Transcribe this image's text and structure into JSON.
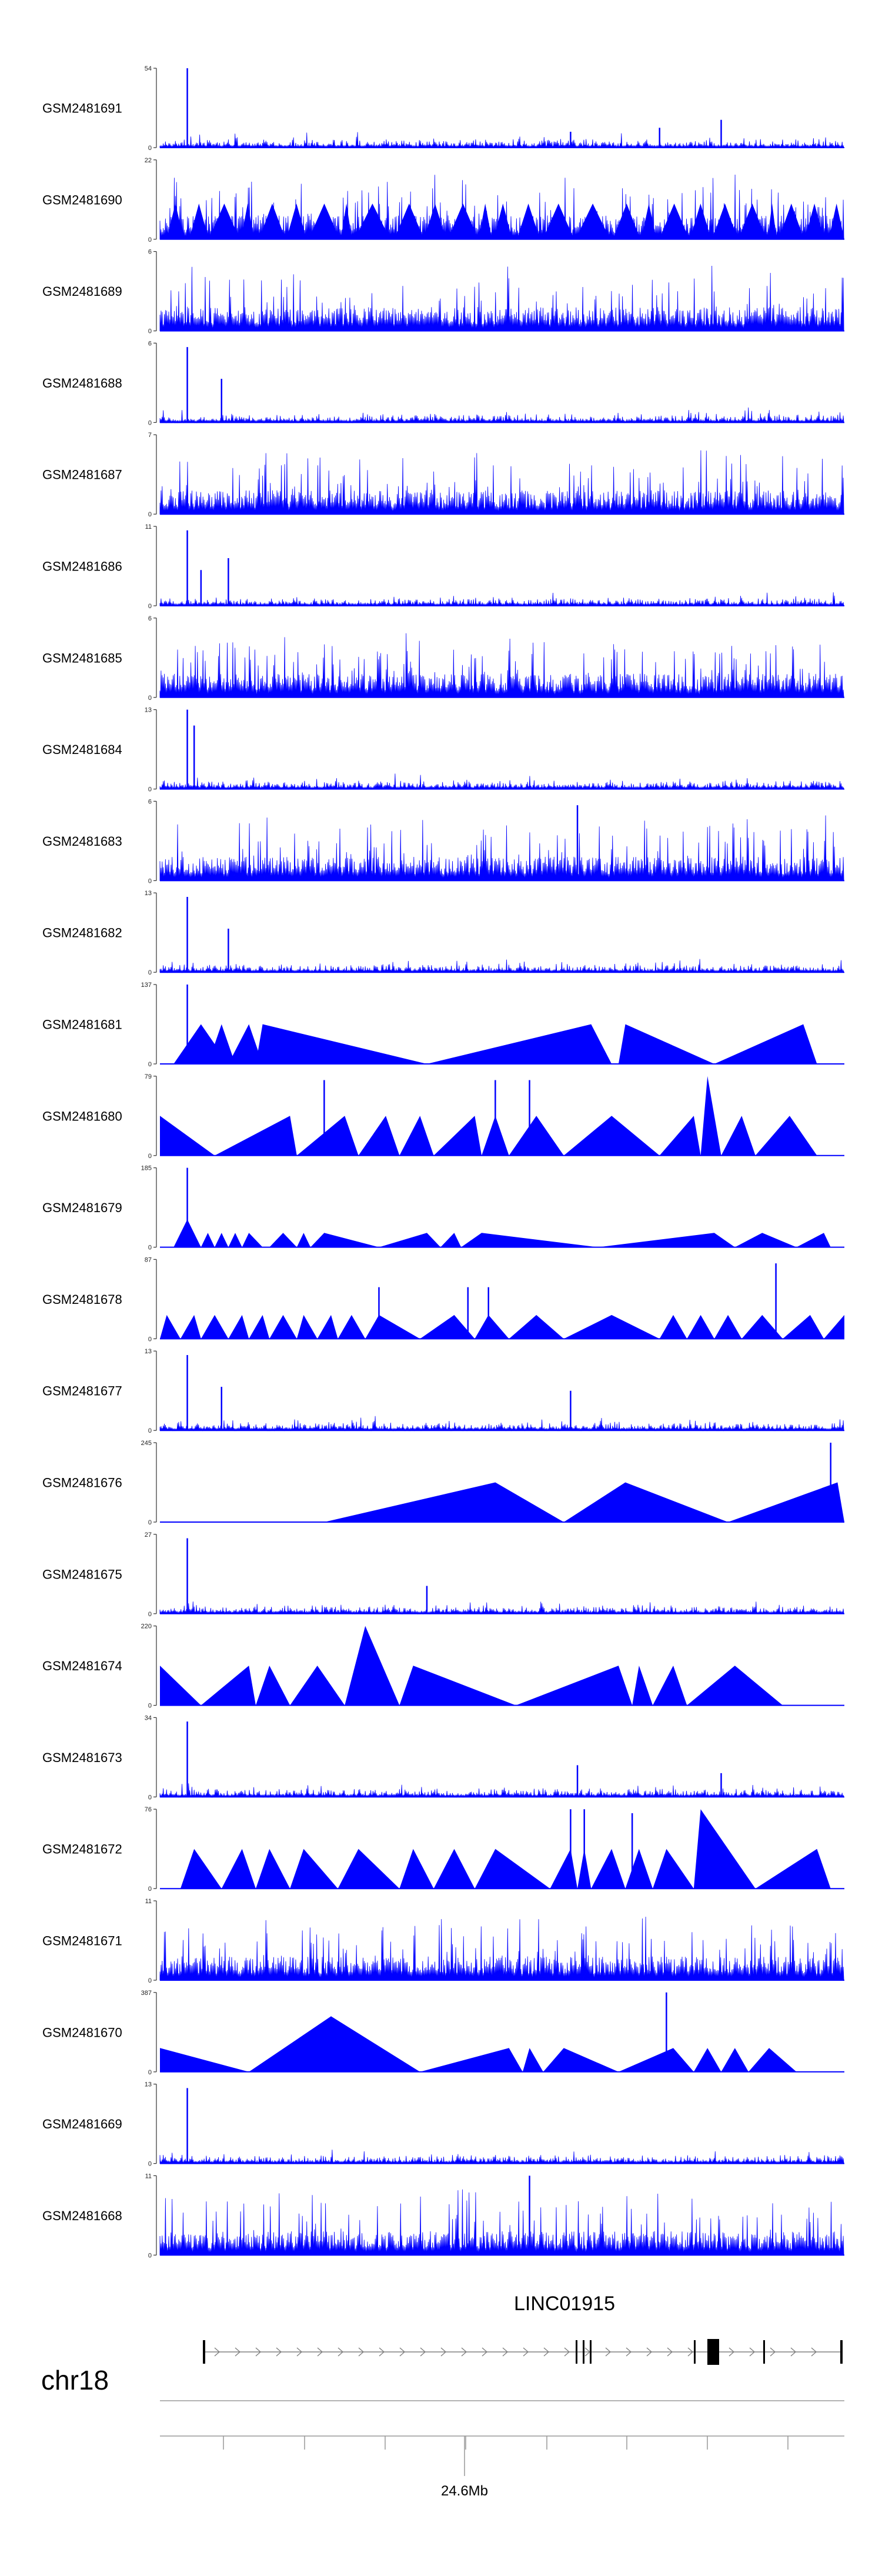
{
  "chart_data": {
    "type": "area",
    "title": "",
    "description_colors": {
      "signal": "#0000ff",
      "axis": "#333333",
      "gene": "#000000"
    },
    "tracks": [
      {
        "name": "GSM2481691",
        "ymax": 54,
        "profile": "spiky",
        "peaks": [
          [
            0.04,
            1.0
          ],
          [
            0.82,
            0.35
          ],
          [
            0.73,
            0.25
          ],
          [
            0.6,
            0.2
          ]
        ]
      },
      {
        "name": "GSM2481690",
        "ymax": 22,
        "profile": "dense-tri",
        "peaks": []
      },
      {
        "name": "GSM2481689",
        "ymax": 6,
        "profile": "dense",
        "peaks": []
      },
      {
        "name": "GSM2481688",
        "ymax": 6,
        "profile": "spiky",
        "peaks": [
          [
            0.04,
            0.95
          ],
          [
            0.09,
            0.55
          ]
        ]
      },
      {
        "name": "GSM2481687",
        "ymax": 7,
        "profile": "dense",
        "peaks": []
      },
      {
        "name": "GSM2481686",
        "ymax": 11,
        "profile": "spiky",
        "peaks": [
          [
            0.04,
            0.95
          ],
          [
            0.1,
            0.6
          ],
          [
            0.06,
            0.45
          ]
        ]
      },
      {
        "name": "GSM2481685",
        "ymax": 6,
        "profile": "dense",
        "peaks": []
      },
      {
        "name": "GSM2481684",
        "ymax": 13,
        "profile": "spiky",
        "peaks": [
          [
            0.04,
            1.0
          ],
          [
            0.05,
            0.8
          ]
        ]
      },
      {
        "name": "GSM2481683",
        "ymax": 6,
        "profile": "dense",
        "peaks": [
          [
            0.61,
            0.95
          ]
        ]
      },
      {
        "name": "GSM2481682",
        "ymax": 13,
        "profile": "spiky",
        "peaks": [
          [
            0.04,
            0.95
          ],
          [
            0.1,
            0.55
          ]
        ]
      },
      {
        "name": "GSM2481681",
        "ymax": 137,
        "profile": "tri",
        "peaks": [
          [
            0.04,
            1.0
          ]
        ],
        "tri": [
          [
            0.02,
            0.06,
            0.1,
            0.5
          ],
          [
            0.07,
            0.09,
            0.11,
            0.5
          ],
          [
            0.1,
            0.13,
            0.15,
            0.5
          ],
          [
            0.14,
            0.15,
            0.39,
            0.5
          ],
          [
            0.39,
            0.63,
            0.66,
            0.5
          ],
          [
            0.67,
            0.68,
            0.81,
            0.5
          ],
          [
            0.81,
            0.94,
            0.96,
            0.5
          ]
        ]
      },
      {
        "name": "GSM2481680",
        "ymax": 79,
        "profile": "tri",
        "peaks": [
          [
            0.24,
            0.95
          ],
          [
            0.49,
            0.95
          ],
          [
            0.54,
            0.95
          ]
        ],
        "tri": [
          [
            0.0,
            0.0,
            0.08,
            0.5
          ],
          [
            0.08,
            0.19,
            0.2,
            0.5
          ],
          [
            0.2,
            0.27,
            0.29,
            0.5
          ],
          [
            0.29,
            0.33,
            0.35,
            0.5
          ],
          [
            0.35,
            0.38,
            0.4,
            0.5
          ],
          [
            0.4,
            0.46,
            0.47,
            0.5
          ],
          [
            0.47,
            0.49,
            0.51,
            0.5
          ],
          [
            0.51,
            0.55,
            0.59,
            0.5
          ],
          [
            0.59,
            0.66,
            0.73,
            0.5
          ],
          [
            0.73,
            0.78,
            0.79,
            0.5
          ],
          [
            0.79,
            0.8,
            0.82,
            1.0
          ],
          [
            0.82,
            0.85,
            0.87,
            0.5
          ],
          [
            0.87,
            0.92,
            0.96,
            0.5
          ]
        ]
      },
      {
        "name": "GSM2481679",
        "ymax": 185,
        "profile": "tri",
        "peaks": [
          [
            0.04,
            1.0
          ]
        ],
        "tri": [
          [
            0.02,
            0.04,
            0.06,
            0.35
          ],
          [
            0.06,
            0.07,
            0.08,
            0.18
          ],
          [
            0.08,
            0.09,
            0.1,
            0.18
          ],
          [
            0.1,
            0.11,
            0.12,
            0.18
          ],
          [
            0.12,
            0.13,
            0.15,
            0.18
          ],
          [
            0.16,
            0.18,
            0.2,
            0.18
          ],
          [
            0.2,
            0.21,
            0.22,
            0.18
          ],
          [
            0.22,
            0.24,
            0.32,
            0.18
          ],
          [
            0.32,
            0.39,
            0.41,
            0.18
          ],
          [
            0.41,
            0.43,
            0.44,
            0.18
          ],
          [
            0.44,
            0.47,
            0.64,
            0.18
          ],
          [
            0.64,
            0.81,
            0.84,
            0.18
          ],
          [
            0.84,
            0.88,
            0.93,
            0.18
          ],
          [
            0.93,
            0.97,
            0.98,
            0.18
          ]
        ]
      },
      {
        "name": "GSM2481678",
        "ymax": 87,
        "profile": "tri",
        "peaks": [
          [
            0.32,
            0.65
          ],
          [
            0.45,
            0.65
          ],
          [
            0.48,
            0.65
          ],
          [
            0.9,
            0.95
          ]
        ],
        "tri": [
          [
            0.0,
            0.01,
            0.03,
            0.3
          ],
          [
            0.03,
            0.05,
            0.06,
            0.3
          ],
          [
            0.06,
            0.08,
            0.1,
            0.3
          ],
          [
            0.1,
            0.12,
            0.13,
            0.3
          ],
          [
            0.13,
            0.15,
            0.16,
            0.3
          ],
          [
            0.16,
            0.18,
            0.2,
            0.3
          ],
          [
            0.2,
            0.21,
            0.23,
            0.3
          ],
          [
            0.23,
            0.25,
            0.26,
            0.3
          ],
          [
            0.26,
            0.28,
            0.3,
            0.3
          ],
          [
            0.3,
            0.32,
            0.38,
            0.3
          ],
          [
            0.38,
            0.43,
            0.46,
            0.3
          ],
          [
            0.46,
            0.48,
            0.51,
            0.3
          ],
          [
            0.51,
            0.55,
            0.59,
            0.3
          ],
          [
            0.59,
            0.66,
            0.73,
            0.3
          ],
          [
            0.73,
            0.75,
            0.77,
            0.3
          ],
          [
            0.77,
            0.79,
            0.81,
            0.3
          ],
          [
            0.81,
            0.83,
            0.85,
            0.3
          ],
          [
            0.85,
            0.88,
            0.91,
            0.3
          ],
          [
            0.91,
            0.95,
            0.97,
            0.3
          ],
          [
            0.97,
            1.0,
            1.0,
            0.3
          ]
        ]
      },
      {
        "name": "GSM2481677",
        "ymax": 13,
        "profile": "spiky",
        "peaks": [
          [
            0.04,
            0.95
          ],
          [
            0.09,
            0.55
          ],
          [
            0.6,
            0.5
          ]
        ]
      },
      {
        "name": "GSM2481676",
        "ymax": 245,
        "profile": "tri",
        "peaks": [
          [
            0.98,
            1.0
          ]
        ],
        "tri": [
          [
            0.24,
            0.49,
            0.59,
            0.5
          ],
          [
            0.59,
            0.68,
            0.83,
            0.5
          ],
          [
            0.83,
            0.99,
            1.0,
            0.5
          ]
        ]
      },
      {
        "name": "GSM2481675",
        "ymax": 27,
        "profile": "spiky",
        "peaks": [
          [
            0.04,
            0.95
          ],
          [
            0.39,
            0.35
          ]
        ]
      },
      {
        "name": "GSM2481674",
        "ymax": 220,
        "profile": "tri",
        "peaks": [],
        "tri": [
          [
            0.0,
            0.0,
            0.06,
            0.5
          ],
          [
            0.06,
            0.13,
            0.14,
            0.5
          ],
          [
            0.14,
            0.16,
            0.19,
            0.5
          ],
          [
            0.19,
            0.23,
            0.27,
            0.5
          ],
          [
            0.27,
            0.3,
            0.35,
            1.0
          ],
          [
            0.35,
            0.37,
            0.52,
            0.5
          ],
          [
            0.52,
            0.67,
            0.69,
            0.5
          ],
          [
            0.69,
            0.7,
            0.72,
            0.5
          ],
          [
            0.72,
            0.75,
            0.77,
            0.5
          ],
          [
            0.77,
            0.84,
            0.91,
            0.5
          ]
        ]
      },
      {
        "name": "GSM2481673",
        "ymax": 34,
        "profile": "spiky",
        "peaks": [
          [
            0.04,
            0.95
          ],
          [
            0.61,
            0.4
          ],
          [
            0.82,
            0.3
          ]
        ]
      },
      {
        "name": "GSM2481672",
        "ymax": 76,
        "profile": "tri",
        "peaks": [
          [
            0.6,
            1.0
          ],
          [
            0.62,
            1.0
          ],
          [
            0.69,
            0.95
          ]
        ],
        "tri": [
          [
            0.03,
            0.05,
            0.09,
            0.5
          ],
          [
            0.09,
            0.12,
            0.14,
            0.5
          ],
          [
            0.14,
            0.16,
            0.19,
            0.5
          ],
          [
            0.19,
            0.21,
            0.26,
            0.5
          ],
          [
            0.26,
            0.29,
            0.35,
            0.5
          ],
          [
            0.35,
            0.37,
            0.4,
            0.5
          ],
          [
            0.4,
            0.43,
            0.46,
            0.5
          ],
          [
            0.46,
            0.49,
            0.57,
            0.5
          ],
          [
            0.57,
            0.6,
            0.61,
            0.5
          ],
          [
            0.61,
            0.62,
            0.63,
            0.5
          ],
          [
            0.63,
            0.66,
            0.68,
            0.5
          ],
          [
            0.68,
            0.7,
            0.72,
            0.5
          ],
          [
            0.72,
            0.74,
            0.78,
            0.5
          ],
          [
            0.78,
            0.79,
            0.87,
            1.0
          ],
          [
            0.87,
            0.96,
            0.98,
            0.5
          ]
        ]
      },
      {
        "name": "GSM2481671",
        "ymax": 11,
        "profile": "dense",
        "peaks": []
      },
      {
        "name": "GSM2481670",
        "ymax": 387,
        "profile": "tri",
        "peaks": [
          [
            0.74,
            1.0
          ]
        ],
        "tri": [
          [
            0.0,
            0.0,
            0.13,
            0.3
          ],
          [
            0.13,
            0.25,
            0.38,
            0.7
          ],
          [
            0.38,
            0.51,
            0.53,
            0.3
          ],
          [
            0.53,
            0.54,
            0.56,
            0.3
          ],
          [
            0.56,
            0.59,
            0.67,
            0.3
          ],
          [
            0.67,
            0.75,
            0.78,
            0.3
          ],
          [
            0.78,
            0.8,
            0.82,
            0.3
          ],
          [
            0.82,
            0.84,
            0.86,
            0.3
          ],
          [
            0.86,
            0.89,
            0.93,
            0.3
          ]
        ]
      },
      {
        "name": "GSM2481669",
        "ymax": 13,
        "profile": "spiky",
        "peaks": [
          [
            0.04,
            0.95
          ]
        ]
      },
      {
        "name": "GSM2481668",
        "ymax": 11,
        "profile": "dense",
        "peaks": [
          [
            0.54,
            1.0
          ]
        ]
      }
    ],
    "gene": {
      "name": "LINC01915",
      "strand": "+"
    },
    "chromosome": "chr18",
    "axis": {
      "tick_label": "24.6Mb",
      "tick_label_position_fraction": 0.44
    }
  }
}
